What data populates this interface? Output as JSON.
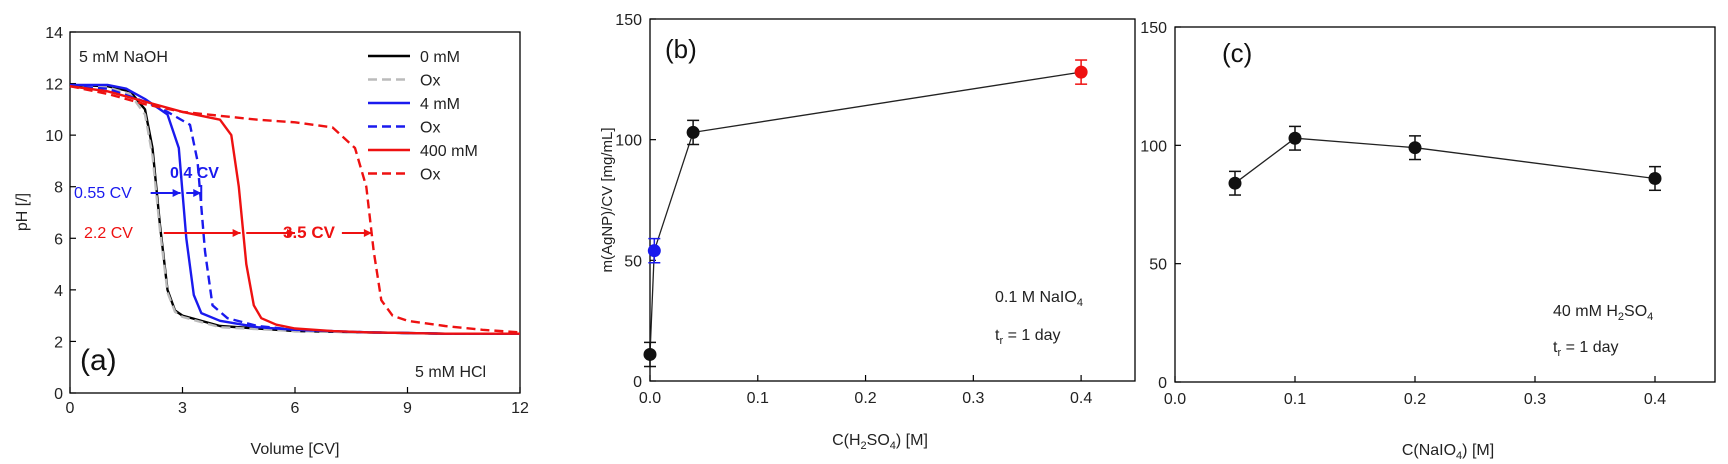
{
  "chart_data": [
    {
      "id": "a",
      "type": "line",
      "panel_label": "(a)",
      "xlabel": "Volume [CV]",
      "ylabel": "pH [/]",
      "xlim": [
        0,
        12
      ],
      "ylim": [
        0,
        14
      ],
      "xticks": [
        0,
        3,
        6,
        9,
        12
      ],
      "yticks": [
        0,
        2,
        4,
        6,
        8,
        10,
        12,
        14
      ],
      "annotations": {
        "top_left": "5 mM NaOH",
        "bottom_right": "5 mM HCl",
        "blue_left": "0.55 CV",
        "blue_right": "0.4 CV",
        "red_left": "2.2 CV",
        "red_right": "3.5 CV"
      },
      "series": [
        {
          "name": "0 mM",
          "color": "#000000",
          "dash": false,
          "x": [
            0,
            1,
            1.6,
            2.0,
            2.2,
            2.4,
            2.6,
            2.8,
            3.0,
            4,
            6,
            8,
            10,
            12
          ],
          "y": [
            11.95,
            11.9,
            11.7,
            11.0,
            9.5,
            6.5,
            4.0,
            3.2,
            3.0,
            2.6,
            2.4,
            2.35,
            2.3,
            2.3
          ]
        },
        {
          "name": "Ox",
          "color": "#bbbbbb",
          "dash": true,
          "x": [
            0,
            1,
            1.6,
            2.0,
            2.2,
            2.4,
            2.6,
            2.8,
            3.0,
            4,
            6,
            8,
            10,
            12
          ],
          "y": [
            11.9,
            11.85,
            11.6,
            10.8,
            9.2,
            6.3,
            3.9,
            3.15,
            2.95,
            2.55,
            2.4,
            2.35,
            2.3,
            2.3
          ]
        },
        {
          "name": "4 mM",
          "color": "#1a1aee",
          "dash": false,
          "x": [
            0,
            1,
            1.5,
            2.0,
            2.6,
            2.9,
            3.1,
            3.3,
            3.5,
            4,
            5,
            6,
            8,
            10,
            12
          ],
          "y": [
            11.95,
            11.95,
            11.8,
            11.4,
            10.8,
            9.5,
            6.0,
            3.8,
            3.1,
            2.8,
            2.55,
            2.45,
            2.35,
            2.3,
            2.3
          ]
        },
        {
          "name": "Ox",
          "color": "#1a1aee",
          "dash": true,
          "x": [
            0,
            1,
            2.0,
            2.6,
            3.2,
            3.4,
            3.6,
            3.8,
            4.2,
            5,
            6,
            8,
            10,
            12
          ],
          "y": [
            11.9,
            11.8,
            11.3,
            10.9,
            10.4,
            9.0,
            5.5,
            3.4,
            2.9,
            2.6,
            2.45,
            2.35,
            2.3,
            2.3
          ]
        },
        {
          "name": "400 mM",
          "color": "#ee1111",
          "dash": false,
          "x": [
            0,
            1,
            2,
            3,
            4,
            4.3,
            4.5,
            4.7,
            4.9,
            5.1,
            5.5,
            6,
            7,
            8,
            10,
            12
          ],
          "y": [
            11.9,
            11.7,
            11.3,
            10.9,
            10.6,
            10.0,
            8.0,
            5.0,
            3.4,
            2.9,
            2.65,
            2.5,
            2.4,
            2.35,
            2.3,
            2.3
          ]
        },
        {
          "name": "Ox",
          "color": "#ee1111",
          "dash": true,
          "x": [
            0,
            1,
            2,
            3,
            4,
            5,
            6,
            7,
            7.6,
            7.9,
            8.1,
            8.3,
            8.6,
            9,
            10,
            11,
            12
          ],
          "y": [
            11.9,
            11.6,
            11.2,
            10.9,
            10.75,
            10.6,
            10.5,
            10.3,
            9.5,
            8.0,
            5.5,
            3.6,
            3.0,
            2.8,
            2.6,
            2.45,
            2.35
          ]
        }
      ]
    },
    {
      "id": "b",
      "type": "scatter",
      "panel_label": "(b)",
      "xlabel": "C(H2SO4) [M]",
      "ylabel": "m(AgNP)/CV [mg/mL]",
      "xlim": [
        0,
        0.45
      ],
      "ylim": [
        0,
        150
      ],
      "xticks": [
        0.0,
        0.1,
        0.2,
        0.3,
        0.4
      ],
      "yticks": [
        0,
        50,
        100,
        150
      ],
      "annotation_1": "0.1 M NaIO4",
      "annotation_2": "tr = 1 day",
      "points": [
        {
          "x": 0.0,
          "y": 11,
          "err": 5,
          "color": "#111111"
        },
        {
          "x": 0.004,
          "y": 54,
          "err": 5,
          "color": "#1a1aee"
        },
        {
          "x": 0.04,
          "y": 103,
          "err": 5,
          "color": "#111111"
        },
        {
          "x": 0.4,
          "y": 128,
          "err": 5,
          "color": "#ee1111"
        }
      ]
    },
    {
      "id": "c",
      "type": "scatter",
      "panel_label": "(c)",
      "xlabel": "C(NaIO4) [M]",
      "ylabel": "",
      "xlim": [
        0,
        0.45
      ],
      "ylim": [
        0,
        150
      ],
      "xticks": [
        0.0,
        0.1,
        0.2,
        0.3,
        0.4
      ],
      "yticks": [
        0,
        50,
        100,
        150
      ],
      "annotation_1": "40 mM H2SO4",
      "annotation_2": "tr = 1 day",
      "points": [
        {
          "x": 0.05,
          "y": 84,
          "err": 5,
          "color": "#111111"
        },
        {
          "x": 0.1,
          "y": 103,
          "err": 5,
          "color": "#111111"
        },
        {
          "x": 0.2,
          "y": 99,
          "err": 5,
          "color": "#111111"
        },
        {
          "x": 0.4,
          "y": 86,
          "err": 5,
          "color": "#111111"
        }
      ]
    }
  ]
}
